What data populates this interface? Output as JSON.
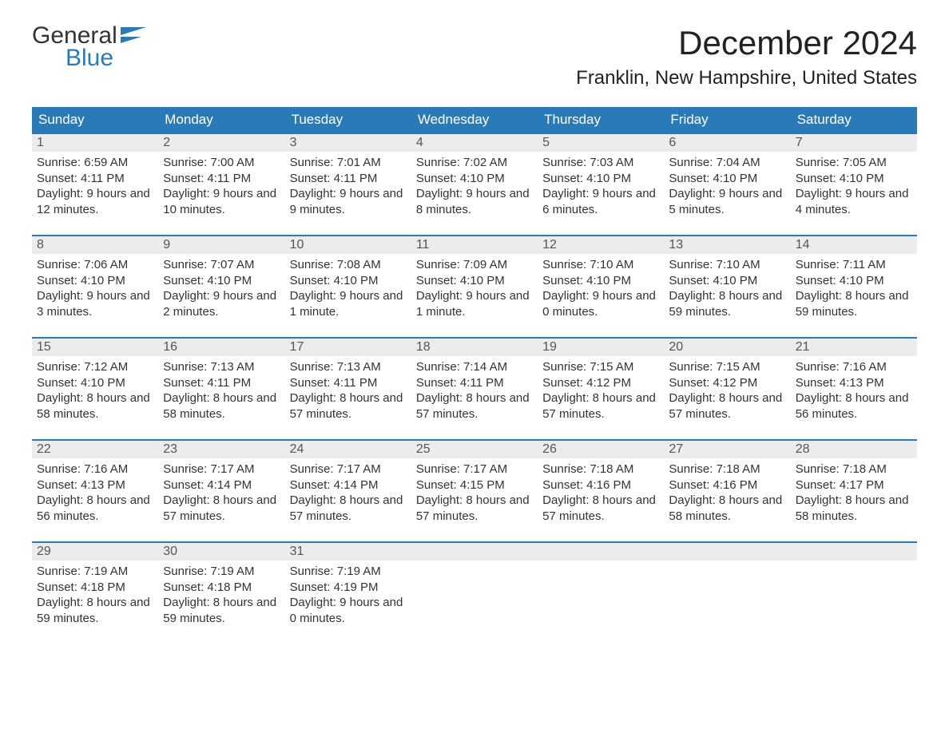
{
  "logo": {
    "word1": "General",
    "word2": "Blue",
    "flag_color": "#2a7ab8"
  },
  "title": "December 2024",
  "location": "Franklin, New Hampshire, United States",
  "colors": {
    "header_bg": "#2a7ab8",
    "header_text": "#ffffff",
    "daynum_bg": "#ececec",
    "row_border": "#2a7ab8",
    "text": "#333333"
  },
  "day_labels": [
    "Sunday",
    "Monday",
    "Tuesday",
    "Wednesday",
    "Thursday",
    "Friday",
    "Saturday"
  ],
  "weeks": [
    [
      {
        "n": "1",
        "sr": "6:59 AM",
        "ss": "4:11 PM",
        "dl": "9 hours and 12 minutes."
      },
      {
        "n": "2",
        "sr": "7:00 AM",
        "ss": "4:11 PM",
        "dl": "9 hours and 10 minutes."
      },
      {
        "n": "3",
        "sr": "7:01 AM",
        "ss": "4:11 PM",
        "dl": "9 hours and 9 minutes."
      },
      {
        "n": "4",
        "sr": "7:02 AM",
        "ss": "4:10 PM",
        "dl": "9 hours and 8 minutes."
      },
      {
        "n": "5",
        "sr": "7:03 AM",
        "ss": "4:10 PM",
        "dl": "9 hours and 6 minutes."
      },
      {
        "n": "6",
        "sr": "7:04 AM",
        "ss": "4:10 PM",
        "dl": "9 hours and 5 minutes."
      },
      {
        "n": "7",
        "sr": "7:05 AM",
        "ss": "4:10 PM",
        "dl": "9 hours and 4 minutes."
      }
    ],
    [
      {
        "n": "8",
        "sr": "7:06 AM",
        "ss": "4:10 PM",
        "dl": "9 hours and 3 minutes."
      },
      {
        "n": "9",
        "sr": "7:07 AM",
        "ss": "4:10 PM",
        "dl": "9 hours and 2 minutes."
      },
      {
        "n": "10",
        "sr": "7:08 AM",
        "ss": "4:10 PM",
        "dl": "9 hours and 1 minute."
      },
      {
        "n": "11",
        "sr": "7:09 AM",
        "ss": "4:10 PM",
        "dl": "9 hours and 1 minute."
      },
      {
        "n": "12",
        "sr": "7:10 AM",
        "ss": "4:10 PM",
        "dl": "9 hours and 0 minutes."
      },
      {
        "n": "13",
        "sr": "7:10 AM",
        "ss": "4:10 PM",
        "dl": "8 hours and 59 minutes."
      },
      {
        "n": "14",
        "sr": "7:11 AM",
        "ss": "4:10 PM",
        "dl": "8 hours and 59 minutes."
      }
    ],
    [
      {
        "n": "15",
        "sr": "7:12 AM",
        "ss": "4:10 PM",
        "dl": "8 hours and 58 minutes."
      },
      {
        "n": "16",
        "sr": "7:13 AM",
        "ss": "4:11 PM",
        "dl": "8 hours and 58 minutes."
      },
      {
        "n": "17",
        "sr": "7:13 AM",
        "ss": "4:11 PM",
        "dl": "8 hours and 57 minutes."
      },
      {
        "n": "18",
        "sr": "7:14 AM",
        "ss": "4:11 PM",
        "dl": "8 hours and 57 minutes."
      },
      {
        "n": "19",
        "sr": "7:15 AM",
        "ss": "4:12 PM",
        "dl": "8 hours and 57 minutes."
      },
      {
        "n": "20",
        "sr": "7:15 AM",
        "ss": "4:12 PM",
        "dl": "8 hours and 57 minutes."
      },
      {
        "n": "21",
        "sr": "7:16 AM",
        "ss": "4:13 PM",
        "dl": "8 hours and 56 minutes."
      }
    ],
    [
      {
        "n": "22",
        "sr": "7:16 AM",
        "ss": "4:13 PM",
        "dl": "8 hours and 56 minutes."
      },
      {
        "n": "23",
        "sr": "7:17 AM",
        "ss": "4:14 PM",
        "dl": "8 hours and 57 minutes."
      },
      {
        "n": "24",
        "sr": "7:17 AM",
        "ss": "4:14 PM",
        "dl": "8 hours and 57 minutes."
      },
      {
        "n": "25",
        "sr": "7:17 AM",
        "ss": "4:15 PM",
        "dl": "8 hours and 57 minutes."
      },
      {
        "n": "26",
        "sr": "7:18 AM",
        "ss": "4:16 PM",
        "dl": "8 hours and 57 minutes."
      },
      {
        "n": "27",
        "sr": "7:18 AM",
        "ss": "4:16 PM",
        "dl": "8 hours and 58 minutes."
      },
      {
        "n": "28",
        "sr": "7:18 AM",
        "ss": "4:17 PM",
        "dl": "8 hours and 58 minutes."
      }
    ],
    [
      {
        "n": "29",
        "sr": "7:19 AM",
        "ss": "4:18 PM",
        "dl": "8 hours and 59 minutes."
      },
      {
        "n": "30",
        "sr": "7:19 AM",
        "ss": "4:18 PM",
        "dl": "8 hours and 59 minutes."
      },
      {
        "n": "31",
        "sr": "7:19 AM",
        "ss": "4:19 PM",
        "dl": "9 hours and 0 minutes."
      },
      null,
      null,
      null,
      null
    ]
  ],
  "labels": {
    "sunrise": "Sunrise: ",
    "sunset": "Sunset: ",
    "daylight": "Daylight: "
  }
}
